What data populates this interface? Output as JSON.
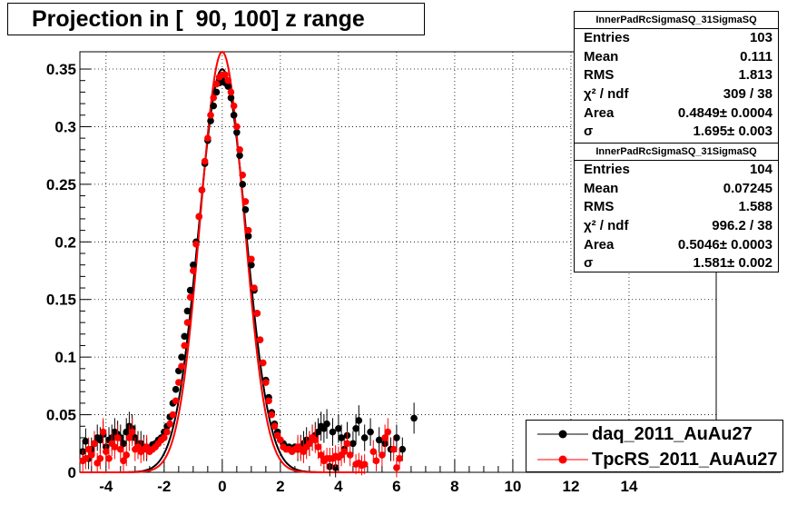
{
  "title": "Projection in [  90, 100] z range",
  "stats_boxes": [
    {
      "name": "InnerPadRcSigmaSQ_31SigmaSQ",
      "rows": [
        {
          "key": "Entries",
          "value": "103"
        },
        {
          "key": "Mean",
          "value": "0.111"
        },
        {
          "key": "RMS",
          "value": "1.813"
        },
        {
          "key": "χ² / ndf",
          "value": "309 / 38"
        },
        {
          "key": "Area",
          "value": "0.4849± 0.0004"
        },
        {
          "key": "σ",
          "value": "1.695± 0.003"
        }
      ]
    },
    {
      "name": "InnerPadRcSigmaSQ_31SigmaSQ",
      "rows": [
        {
          "key": "Entries",
          "value": "104"
        },
        {
          "key": "Mean",
          "value": "0.07245"
        },
        {
          "key": "RMS",
          "value": "1.588"
        },
        {
          "key": "χ² / ndf",
          "value": "996.2 / 38"
        },
        {
          "key": "Area",
          "value": "0.5046± 0.0003"
        },
        {
          "key": "σ",
          "value": "1.581± 0.002"
        }
      ]
    }
  ],
  "legend": [
    {
      "label": "daq_2011_AuAu27",
      "color": "#000000"
    },
    {
      "label": "TpcRS_2011_AuAu27",
      "color": "#ff0000"
    }
  ],
  "chart_data": {
    "type": "scatter",
    "title": "Projection in [  90, 100] z range",
    "xlim": [
      -4.9,
      17
    ],
    "ylim": [
      0,
      0.365
    ],
    "x_ticks": [
      -4,
      -2,
      0,
      2,
      4,
      6,
      8,
      10,
      12,
      14
    ],
    "y_ticks": [
      0,
      0.05,
      0.1,
      0.15,
      0.2,
      0.25,
      0.3,
      0.35
    ],
    "grid": true,
    "legend_position": "bottom-right",
    "series": [
      {
        "name": "daq_2011_AuAu27",
        "color": "#000000",
        "points": [
          [
            -4.8,
            0.018
          ],
          [
            -4.7,
            0.027
          ],
          [
            -4.6,
            0.012
          ],
          [
            -4.5,
            0.02
          ],
          [
            -4.4,
            0.025
          ],
          [
            -4.3,
            0.03
          ],
          [
            -4.2,
            0.028
          ],
          [
            -4.1,
            0.033
          ],
          [
            -4.0,
            0.022
          ],
          [
            -3.9,
            0.028
          ],
          [
            -3.8,
            0.03
          ],
          [
            -3.7,
            0.035
          ],
          [
            -3.6,
            0.033
          ],
          [
            -3.5,
            0.03
          ],
          [
            -3.4,
            0.025
          ],
          [
            -3.3,
            0.035
          ],
          [
            -3.2,
            0.04
          ],
          [
            -3.1,
            0.038
          ],
          [
            -3.0,
            0.03
          ],
          [
            -2.9,
            0.025
          ],
          [
            -2.8,
            0.025
          ],
          [
            -2.7,
            0.022
          ],
          [
            -2.6,
            0.02
          ],
          [
            -2.5,
            0.02
          ],
          [
            -2.4,
            0.024
          ],
          [
            -2.3,
            0.025
          ],
          [
            -2.2,
            0.028
          ],
          [
            -2.1,
            0.03
          ],
          [
            -2.0,
            0.035
          ],
          [
            -1.9,
            0.04
          ],
          [
            -1.8,
            0.048
          ],
          [
            -1.7,
            0.06
          ],
          [
            -1.6,
            0.072
          ],
          [
            -1.5,
            0.088
          ],
          [
            -1.4,
            0.1
          ],
          [
            -1.3,
            0.118
          ],
          [
            -1.2,
            0.14
          ],
          [
            -1.1,
            0.158
          ],
          [
            -1.0,
            0.18
          ],
          [
            -0.9,
            0.2
          ],
          [
            -0.8,
            0.222
          ],
          [
            -0.7,
            0.245
          ],
          [
            -0.6,
            0.268
          ],
          [
            -0.5,
            0.288
          ],
          [
            -0.4,
            0.305
          ],
          [
            -0.3,
            0.318
          ],
          [
            -0.2,
            0.33
          ],
          [
            -0.1,
            0.338
          ],
          [
            0.0,
            0.34
          ],
          [
            0.1,
            0.338
          ],
          [
            0.2,
            0.335
          ],
          [
            0.3,
            0.325
          ],
          [
            0.4,
            0.31
          ],
          [
            0.5,
            0.295
          ],
          [
            0.6,
            0.275
          ],
          [
            0.7,
            0.25
          ],
          [
            0.8,
            0.228
          ],
          [
            0.9,
            0.205
          ],
          [
            1.0,
            0.18
          ],
          [
            1.1,
            0.158
          ],
          [
            1.2,
            0.138
          ],
          [
            1.3,
            0.115
          ],
          [
            1.4,
            0.095
          ],
          [
            1.5,
            0.08
          ],
          [
            1.6,
            0.065
          ],
          [
            1.7,
            0.052
          ],
          [
            1.8,
            0.042
          ],
          [
            1.9,
            0.035
          ],
          [
            2.0,
            0.028
          ],
          [
            2.1,
            0.025
          ],
          [
            2.2,
            0.022
          ],
          [
            2.3,
            0.022
          ],
          [
            2.4,
            0.02
          ],
          [
            2.5,
            0.022
          ],
          [
            2.6,
            0.02
          ],
          [
            2.7,
            0.022
          ],
          [
            2.8,
            0.025
          ],
          [
            2.9,
            0.028
          ],
          [
            3.0,
            0.025
          ],
          [
            3.1,
            0.03
          ],
          [
            3.2,
            0.032
          ],
          [
            3.3,
            0.035
          ],
          [
            3.4,
            0.04
          ],
          [
            3.5,
            0.038
          ],
          [
            3.6,
            0.042
          ],
          [
            3.7,
            0.005
          ],
          [
            3.8,
            0.035
          ],
          [
            3.9,
            0.004
          ],
          [
            4.0,
            0.038
          ],
          [
            4.1,
            0.03
          ],
          [
            4.2,
            0.02
          ],
          [
            4.3,
            0.032
          ],
          [
            4.5,
            0.025
          ],
          [
            4.6,
            0.038
          ],
          [
            4.7,
            0.045
          ],
          [
            4.9,
            0.03
          ],
          [
            5.1,
            0.035
          ],
          [
            5.4,
            0.028
          ],
          [
            5.6,
            0.025
          ],
          [
            5.8,
            0.02
          ],
          [
            6.0,
            0.03
          ],
          [
            6.2,
            0.02
          ],
          [
            6.6,
            0.047
          ]
        ]
      },
      {
        "name": "TpcRS_2011_AuAu27",
        "color": "#ff0000",
        "points": [
          [
            -4.8,
            0.01
          ],
          [
            -4.7,
            0.012
          ],
          [
            -4.6,
            0.02
          ],
          [
            -4.5,
            0.015
          ],
          [
            -4.4,
            0.025
          ],
          [
            -4.3,
            0.008
          ],
          [
            -4.2,
            0.012
          ],
          [
            -4.1,
            0.035
          ],
          [
            -4.0,
            0.018
          ],
          [
            -3.9,
            0.012
          ],
          [
            -3.8,
            0.025
          ],
          [
            -3.7,
            0.022
          ],
          [
            -3.6,
            0.03
          ],
          [
            -3.5,
            0.02
          ],
          [
            -3.4,
            0.01
          ],
          [
            -3.3,
            0.015
          ],
          [
            -3.2,
            0.03
          ],
          [
            -3.1,
            0.035
          ],
          [
            -3.0,
            0.02
          ],
          [
            -2.9,
            0.022
          ],
          [
            -2.8,
            0.018
          ],
          [
            -2.7,
            0.02
          ],
          [
            -2.6,
            0.022
          ],
          [
            -2.5,
            0.018
          ],
          [
            -2.4,
            0.02
          ],
          [
            -2.3,
            0.022
          ],
          [
            -2.2,
            0.025
          ],
          [
            -2.1,
            0.028
          ],
          [
            -2.0,
            0.03
          ],
          [
            -1.9,
            0.035
          ],
          [
            -1.8,
            0.042
          ],
          [
            -1.7,
            0.05
          ],
          [
            -1.6,
            0.062
          ],
          [
            -1.5,
            0.078
          ],
          [
            -1.4,
            0.092
          ],
          [
            -1.3,
            0.11
          ],
          [
            -1.2,
            0.13
          ],
          [
            -1.1,
            0.152
          ],
          [
            -1.0,
            0.175
          ],
          [
            -0.9,
            0.198
          ],
          [
            -0.8,
            0.222
          ],
          [
            -0.7,
            0.245
          ],
          [
            -0.6,
            0.27
          ],
          [
            -0.5,
            0.29
          ],
          [
            -0.4,
            0.31
          ],
          [
            -0.3,
            0.325
          ],
          [
            -0.2,
            0.337
          ],
          [
            -0.1,
            0.343
          ],
          [
            0.0,
            0.345
          ],
          [
            0.1,
            0.345
          ],
          [
            0.2,
            0.34
          ],
          [
            0.3,
            0.33
          ],
          [
            0.4,
            0.318
          ],
          [
            0.5,
            0.3
          ],
          [
            0.6,
            0.28
          ],
          [
            0.7,
            0.258
          ],
          [
            0.8,
            0.235
          ],
          [
            0.9,
            0.21
          ],
          [
            1.0,
            0.185
          ],
          [
            1.1,
            0.16
          ],
          [
            1.2,
            0.138
          ],
          [
            1.3,
            0.115
          ],
          [
            1.4,
            0.095
          ],
          [
            1.5,
            0.078
          ],
          [
            1.6,
            0.062
          ],
          [
            1.7,
            0.05
          ],
          [
            1.8,
            0.04
          ],
          [
            1.9,
            0.032
          ],
          [
            2.0,
            0.028
          ],
          [
            2.1,
            0.022
          ],
          [
            2.2,
            0.02
          ],
          [
            2.3,
            0.02
          ],
          [
            2.4,
            0.018
          ],
          [
            2.5,
            0.02
          ],
          [
            2.6,
            0.022
          ],
          [
            2.7,
            0.02
          ],
          [
            2.8,
            0.018
          ],
          [
            2.9,
            0.022
          ],
          [
            3.0,
            0.025
          ],
          [
            3.1,
            0.03
          ],
          [
            3.2,
            0.028
          ],
          [
            3.3,
            0.022
          ],
          [
            3.4,
            0.015
          ],
          [
            3.5,
            0.01
          ],
          [
            3.6,
            0.012
          ],
          [
            3.7,
            0.012
          ],
          [
            3.8,
            0.012
          ],
          [
            3.9,
            0.014
          ],
          [
            4.0,
            0.013
          ],
          [
            4.1,
            0.015
          ],
          [
            4.2,
            0.018
          ],
          [
            4.3,
            0.025
          ],
          [
            4.4,
            0.015
          ],
          [
            4.6,
            0.007
          ],
          [
            4.7,
            0.008
          ],
          [
            4.8,
            0.006
          ],
          [
            4.9,
            0.007
          ],
          [
            5.2,
            0.018
          ],
          [
            5.3,
            0.01
          ],
          [
            5.5,
            0.015
          ],
          [
            5.6,
            0.03
          ],
          [
            5.7,
            0.035
          ],
          [
            5.9,
            0.02
          ],
          [
            6.0,
            0.004
          ],
          [
            6.1,
            0.012
          ]
        ]
      }
    ],
    "fits": [
      {
        "series": "daq_2011_AuAu27",
        "color": "#000000",
        "sigma": 1.695,
        "peak": 0.35
      },
      {
        "series": "TpcRS_2011_AuAu27",
        "color": "#ff0000",
        "sigma": 1.581,
        "peak": 0.365
      }
    ]
  }
}
